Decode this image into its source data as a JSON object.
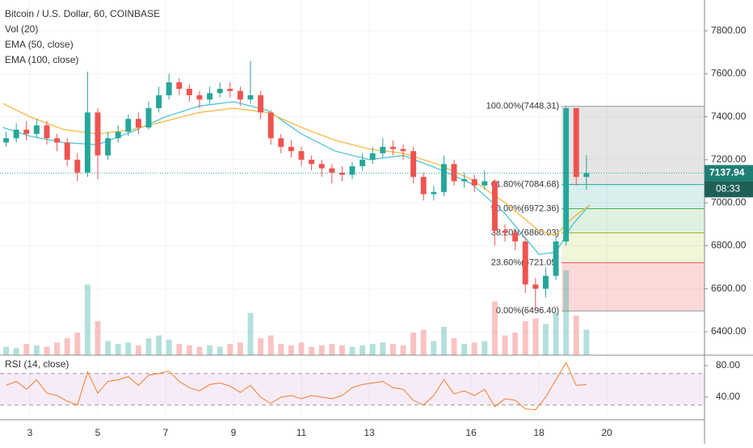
{
  "chart_data": {
    "type": "candlestick",
    "title": "Bitcoin / U.S. Dollar, 60, COINBASE",
    "indicators": [
      "Vol (20)",
      "EMA (50, close)",
      "EMA (100, close)"
    ],
    "rsi_title": "RSI (14, close)",
    "xlim": [
      2.12,
      22.88
    ],
    "xticks": [
      3,
      5,
      7,
      9,
      11,
      13,
      16,
      18,
      20
    ],
    "ylim": [
      6291,
      7943
    ],
    "yticks": [
      {
        "value": 6400,
        "label": "6400.00"
      },
      {
        "value": 6600,
        "label": "6600.00"
      },
      {
        "value": 6800,
        "label": "6800.00"
      },
      {
        "value": 7000,
        "label": "7000.00"
      },
      {
        "value": 7200,
        "label": "7200.00"
      },
      {
        "value": 7400,
        "label": "7400.00"
      },
      {
        "value": 7600,
        "label": "7600.00"
      },
      {
        "value": 7800,
        "label": "7800.00"
      }
    ],
    "up_color": "#26a69a",
    "down_color": "#ef5350",
    "x": [
      2.3,
      2.6,
      2.9,
      3.2,
      3.5,
      3.8,
      4.1,
      4.4,
      4.7,
      5.0,
      5.3,
      5.6,
      5.9,
      6.2,
      6.5,
      6.8,
      7.1,
      7.4,
      7.7,
      8.0,
      8.3,
      8.6,
      8.9,
      9.2,
      9.5,
      9.8,
      10.1,
      10.4,
      10.7,
      11.0,
      11.3,
      11.6,
      11.9,
      12.2,
      12.5,
      12.8,
      13.1,
      13.4,
      13.7,
      14.0,
      14.3,
      14.6,
      14.9,
      15.2,
      15.5,
      15.8,
      16.1,
      16.4,
      16.7,
      17.0,
      17.3,
      17.6,
      17.9,
      18.2,
      18.5,
      18.8,
      19.1,
      19.4
    ],
    "open": [
      7280,
      7300,
      7340,
      7320,
      7360,
      7300,
      7280,
      7200,
      7140,
      7420,
      7220,
      7300,
      7330,
      7390,
      7350,
      7440,
      7500,
      7560,
      7530,
      7500,
      7480,
      7510,
      7530,
      7520,
      7480,
      7500,
      7420,
      7300,
      7260,
      7240,
      7200,
      7180,
      7160,
      7140,
      7130,
      7170,
      7200,
      7230,
      7260,
      7250,
      7240,
      7120,
      7040,
      7050,
      7180,
      7100,
      7110,
      7080,
      7100,
      6870,
      6860,
      6820,
      6620,
      6600,
      6660,
      6820,
      7440,
      7120
    ],
    "high": [
      7330,
      7370,
      7380,
      7390,
      7380,
      7320,
      7300,
      7230,
      7610,
      7440,
      7330,
      7360,
      7410,
      7420,
      7470,
      7540,
      7600,
      7580,
      7550,
      7520,
      7540,
      7560,
      7560,
      7540,
      7660,
      7520,
      7430,
      7320,
      7290,
      7260,
      7220,
      7200,
      7180,
      7170,
      7190,
      7230,
      7260,
      7300,
      7290,
      7270,
      7260,
      7140,
      7080,
      7220,
      7200,
      7140,
      7130,
      7150,
      7110,
      6900,
      6880,
      6840,
      6650,
      6700,
      6850,
      7448,
      7440,
      7220
    ],
    "low": [
      7260,
      7280,
      7290,
      7300,
      7270,
      7240,
      7170,
      7100,
      7120,
      7110,
      7200,
      7280,
      7310,
      7320,
      7340,
      7420,
      7480,
      7500,
      7470,
      7440,
      7460,
      7490,
      7490,
      7450,
      7460,
      7390,
      7270,
      7230,
      7210,
      7170,
      7150,
      7120,
      7090,
      7100,
      7110,
      7150,
      7180,
      7210,
      7220,
      7200,
      7090,
      7010,
      7010,
      7030,
      7080,
      7070,
      7050,
      7060,
      6800,
      6820,
      6780,
      6580,
      6500,
      6560,
      6640,
      6800,
      7080,
      7060
    ],
    "close": [
      7300,
      7340,
      7320,
      7360,
      7300,
      7280,
      7200,
      7140,
      7420,
      7220,
      7300,
      7330,
      7390,
      7350,
      7440,
      7500,
      7560,
      7530,
      7500,
      7480,
      7510,
      7530,
      7520,
      7480,
      7500,
      7420,
      7300,
      7260,
      7240,
      7200,
      7180,
      7160,
      7140,
      7130,
      7170,
      7200,
      7230,
      7260,
      7250,
      7240,
      7120,
      7040,
      7050,
      7180,
      7100,
      7110,
      7080,
      7100,
      6870,
      6860,
      6820,
      6620,
      6600,
      6660,
      6820,
      7440,
      7120,
      7138
    ],
    "volume_ylim": [
      0,
      400
    ],
    "volume": [
      30,
      25,
      40,
      35,
      30,
      45,
      60,
      80,
      250,
      120,
      50,
      40,
      45,
      35,
      60,
      70,
      55,
      40,
      35,
      30,
      35,
      30,
      40,
      45,
      150,
      60,
      70,
      40,
      35,
      45,
      30,
      35,
      40,
      35,
      30,
      35,
      40,
      45,
      40,
      35,
      80,
      90,
      50,
      100,
      60,
      40,
      45,
      50,
      190,
      70,
      80,
      120,
      130,
      110,
      150,
      300,
      140,
      90
    ],
    "series": [
      {
        "name": "EMA (50, close)",
        "color": "#4dc4d4",
        "x": [
          2.2,
          3,
          4,
          5,
          6,
          7,
          8,
          9,
          10,
          11,
          12,
          13,
          14,
          15,
          16,
          17,
          18,
          18.5,
          19,
          19.5
        ],
        "values": [
          7350,
          7310,
          7280,
          7270,
          7330,
          7400,
          7450,
          7470,
          7430,
          7320,
          7240,
          7200,
          7220,
          7160,
          7090,
          6950,
          6760,
          6770,
          6900,
          6990
        ]
      },
      {
        "name": "EMA (100, close)",
        "color": "#f5b942",
        "x": [
          2.2,
          3,
          4,
          5,
          6,
          7,
          8,
          9,
          10,
          11,
          12,
          13,
          14,
          15,
          16,
          17,
          18,
          18.5,
          19,
          19.5
        ],
        "values": [
          7462,
          7400,
          7340,
          7320,
          7340,
          7380,
          7420,
          7440,
          7420,
          7350,
          7290,
          7250,
          7230,
          7180,
          7110,
          7000,
          6870,
          6850,
          6930,
          6990
        ]
      }
    ],
    "fib_x": [
      18.67,
      22.88
    ],
    "fib_levels": [
      {
        "value": 7448.31,
        "label": "100.00%(7448.31)",
        "color": "#999999",
        "fill": "rgba(150,150,150,0.25)"
      },
      {
        "value": 7084.68,
        "label": "61.80%(7084.68)",
        "color": "#26a69a",
        "fill": "rgba(38,166,154,0.18)"
      },
      {
        "value": 6972.36,
        "label": "50.00%(6972.36)",
        "color": "#4caf50",
        "fill": "rgba(76,175,80,0.18)"
      },
      {
        "value": 6860.03,
        "label": "38.20%(6860.03)",
        "color": "#9fb52e",
        "fill": "rgba(180,210,60,0.2)"
      },
      {
        "value": 6721.05,
        "label": "23.60%(6721.05)",
        "color": "#ef5350",
        "fill": "rgba(239,83,80,0.22)"
      },
      {
        "value": 6496.4,
        "label": "0.00%(6496.40)",
        "color": "#999999",
        "fill": "none"
      }
    ],
    "last_price": {
      "value": 7137.94,
      "label": "7137.94"
    },
    "countdown": "08:33",
    "rsi_ylim": [
      11.3,
      93.3
    ],
    "rsi_yticks": [
      {
        "value": 40,
        "label": "40.00"
      },
      {
        "value": 80,
        "label": "80.00"
      }
    ],
    "rsi_band": [
      30,
      70
    ],
    "rsi_color": "#f57c2a",
    "rsi": [
      55,
      60,
      50,
      62,
      45,
      42,
      35,
      30,
      72,
      45,
      60,
      62,
      66,
      55,
      68,
      70,
      73,
      60,
      52,
      48,
      56,
      58,
      54,
      46,
      55,
      40,
      32,
      40,
      42,
      38,
      42,
      40,
      38,
      42,
      52,
      56,
      58,
      60,
      52,
      50,
      36,
      30,
      42,
      62,
      44,
      48,
      42,
      50,
      28,
      38,
      36,
      25,
      24,
      40,
      62,
      84,
      55,
      56
    ]
  }
}
